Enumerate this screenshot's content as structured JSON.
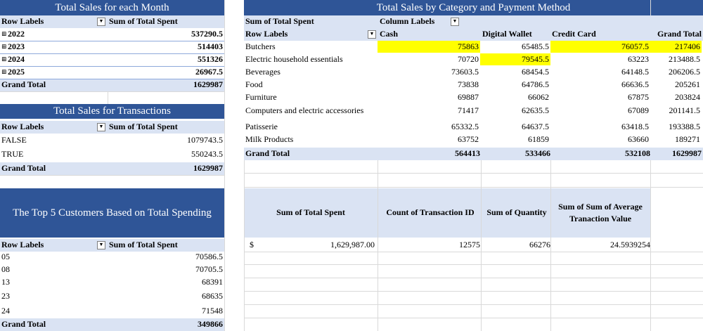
{
  "month": {
    "title": "Total Sales for each Month",
    "row_labels": "Row Labels",
    "sum_label": "Sum of Total Spent",
    "rows": [
      {
        "label": "2022",
        "value": "537290.5"
      },
      {
        "label": "2023",
        "value": "514403"
      },
      {
        "label": "2024",
        "value": "551326"
      },
      {
        "label": "2025",
        "value": "26967.5"
      }
    ],
    "grand_label": "Grand Total",
    "grand_value": "1629987"
  },
  "transactions": {
    "title": "Total Sales for Transactions",
    "row_labels": "Row Labels",
    "sum_label": "Sum of Total Spent",
    "rows": [
      {
        "label": "FALSE",
        "value": "1079743.5"
      },
      {
        "label": "TRUE",
        "value": "550243.5"
      }
    ],
    "grand_label": "Grand Total",
    "grand_value": "1629987"
  },
  "top5": {
    "title": "The Top 5 Customers Based on Total Spending",
    "row_labels": "Row Labels",
    "sum_label": "Sum of Total Spent",
    "rows": [
      {
        "label": "05",
        "value": "70586.5"
      },
      {
        "label": "08",
        "value": "70705.5"
      },
      {
        "label": "13",
        "value": "68391"
      },
      {
        "label": "23",
        "value": "68635"
      },
      {
        "label": "24",
        "value": "71548"
      }
    ],
    "grand_label": "Grand Total",
    "grand_value": "349866"
  },
  "category": {
    "title": "Total Sales by Category and Payment Method",
    "sum_label": "Sum of Total Spent",
    "column_labels": "Column Labels",
    "row_labels": "Row Labels",
    "columns": [
      "Cash",
      "Digital Wallet",
      "Credit Card",
      "Grand Total"
    ],
    "rows": [
      {
        "label": "Butchers",
        "values": [
          "75863",
          "65485.5",
          "76057.5",
          "217406"
        ]
      },
      {
        "label": "Electric household essentials",
        "values": [
          "70720",
          "79545.5",
          "63223",
          "213488.5"
        ]
      },
      {
        "label": "Beverages",
        "values": [
          "73603.5",
          "68454.5",
          "64148.5",
          "206206.5"
        ]
      },
      {
        "label": "Food",
        "values": [
          "73838",
          "64786.5",
          "66636.5",
          "205261"
        ]
      },
      {
        "label": "Furniture",
        "values": [
          "69887",
          "66062",
          "67875",
          "203824"
        ]
      },
      {
        "label": "Computers and electric accessories",
        "values": [
          "71417",
          "62635.5",
          "67089",
          "201141.5"
        ]
      },
      {
        "label": "Patisserie",
        "values": [
          "65332.5",
          "64637.5",
          "63418.5",
          "193388.5"
        ]
      },
      {
        "label": "Milk Products",
        "values": [
          "63752",
          "61859",
          "63660",
          "189271"
        ]
      }
    ],
    "grand_label": "Grand Total",
    "grand_values": [
      "564413",
      "533466",
      "532108",
      "1629987"
    ],
    "highlight_color": "#ffff00"
  },
  "summary": {
    "headers": [
      "Sum of Total Spent",
      "Count of Transaction ID",
      "Sum of Quantity",
      "Sum of Sum of Average Tranaction Value"
    ],
    "currency": "$",
    "values": [
      "1,629,987.00",
      "12575",
      "66276",
      "24.5939254"
    ]
  },
  "colors": {
    "header_bg": "#2f5597",
    "label_bg": "#dae3f3"
  }
}
